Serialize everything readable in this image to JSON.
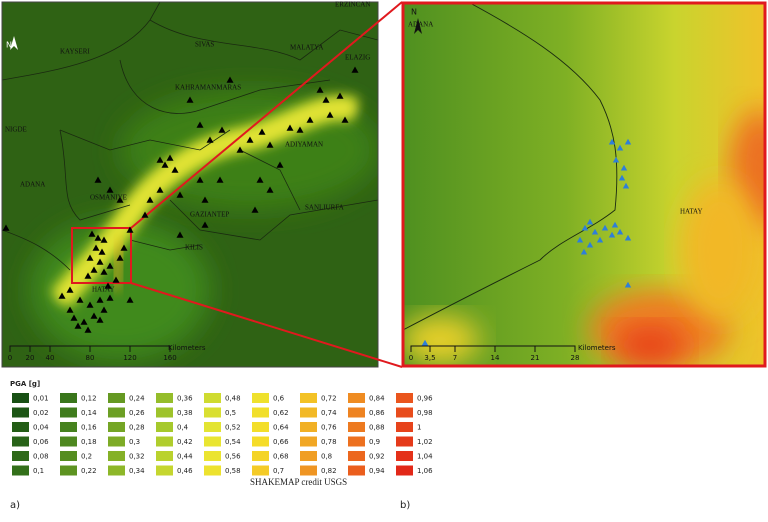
{
  "panel_a": {
    "label": "a)",
    "north": "N",
    "places": [
      "KAYSERI",
      "SIVAS",
      "MALATYA",
      "ERZINCAN",
      "ELAZIG",
      "NIGDE",
      "KAHRAMANMARAS",
      "ADIYAMAN",
      "ADANA",
      "OSMANIYE",
      "GAZIANTEP",
      "SANLIURFA",
      "KILIS",
      "HATAY"
    ],
    "scale": {
      "ticks": [
        "0",
        "20",
        "40",
        "80",
        "120",
        "160"
      ],
      "unit": "Kilometers"
    }
  },
  "panel_b": {
    "label": "b)",
    "north": "N",
    "places": [
      "ADANA",
      "HATAY"
    ],
    "scale": {
      "ticks": [
        "0",
        "3,5",
        "7",
        "14",
        "21",
        "28"
      ],
      "unit": "Kilometers"
    }
  },
  "legend": {
    "title": "PGA [g]",
    "values": [
      "0,01",
      "0,02",
      "0,04",
      "0,06",
      "0,08",
      "0,1",
      "0,12",
      "0,14",
      "0,16",
      "0,18",
      "0,2",
      "0,22",
      "0,24",
      "0,26",
      "0,28",
      "0,3",
      "0,32",
      "0,34",
      "0,36",
      "0,38",
      "0,4",
      "0,42",
      "0,44",
      "0,46",
      "0,48",
      "0,5",
      "0,52",
      "0,54",
      "0,56",
      "0,58",
      "0,6",
      "0,62",
      "0,64",
      "0,66",
      "0,68",
      "0,7",
      "0,72",
      "0,74",
      "0,76",
      "0,78",
      "0,8",
      "0,82",
      "0,84",
      "0,86",
      "0,88",
      "0,9",
      "0,92",
      "0,94",
      "0,96",
      "0,98",
      "1",
      "1,02",
      "1,04",
      "1,06"
    ],
    "credit": "SHAKEMAP credit USGS"
  }
}
